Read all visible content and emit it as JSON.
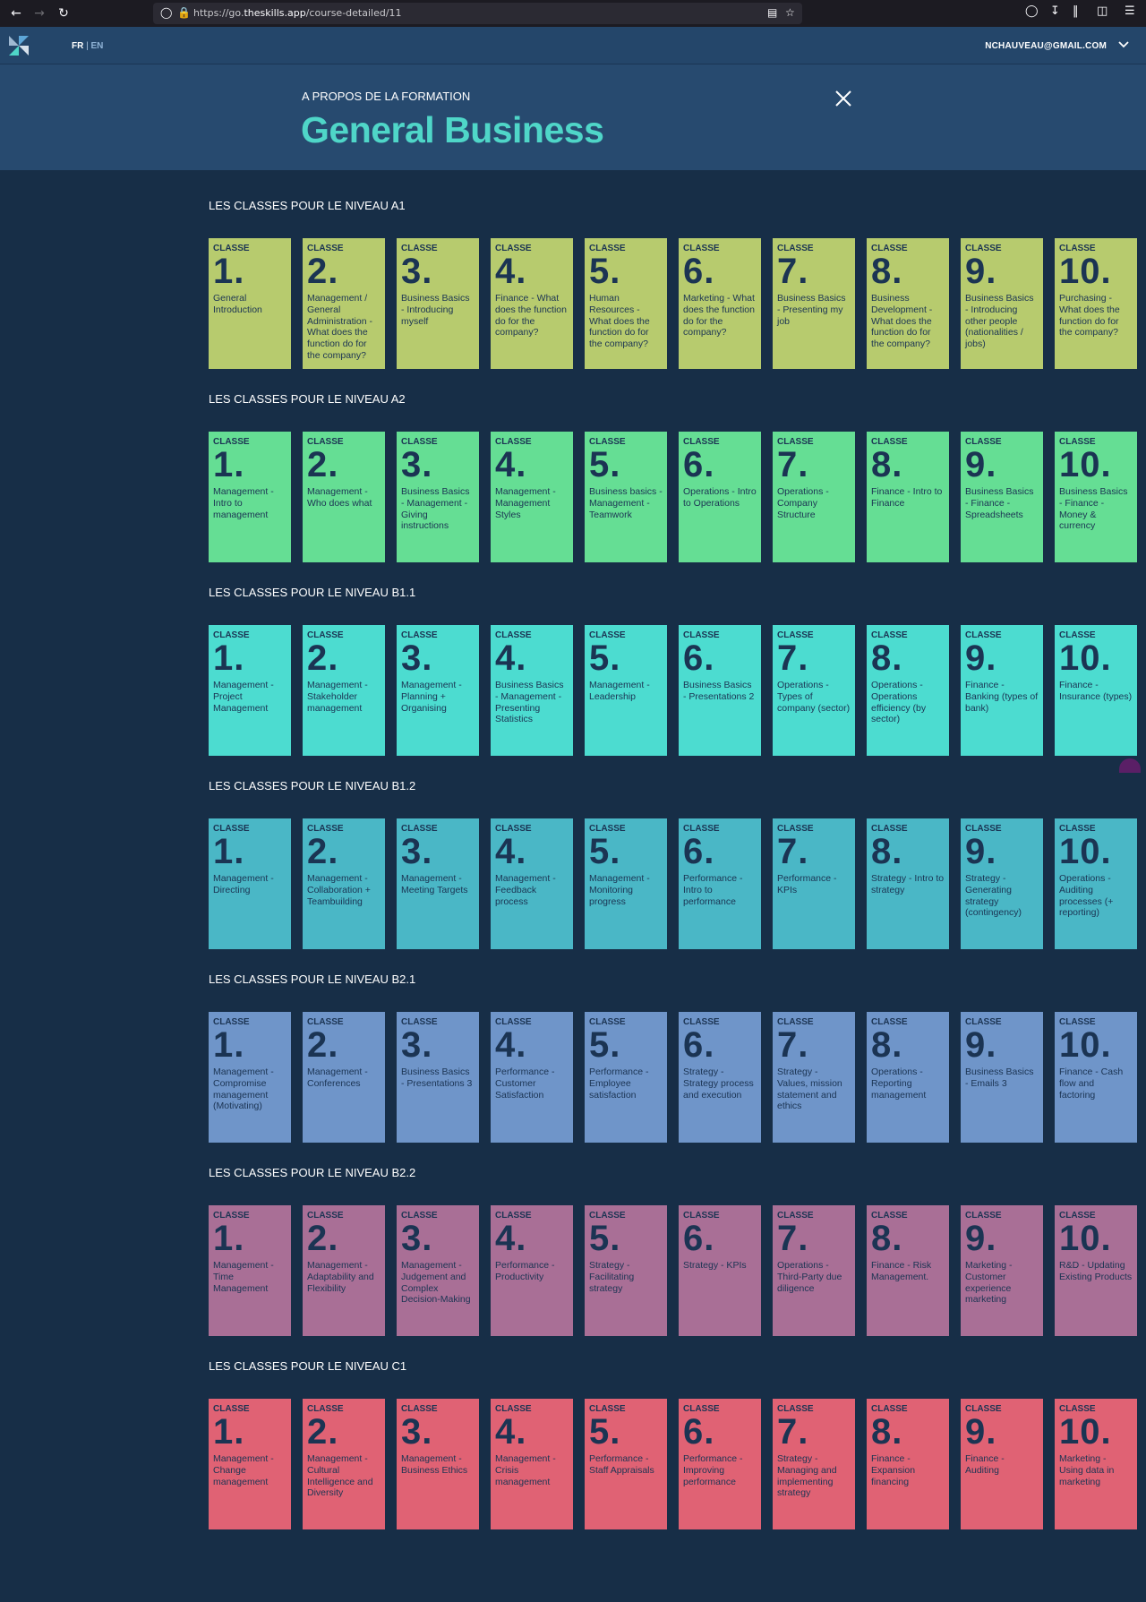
{
  "browser": {
    "url_prefix": "https://go.",
    "url_domain": "theskills.app",
    "url_path": "/course-detailed/11"
  },
  "header": {
    "lang_fr": "FR",
    "lang_sep": "|",
    "lang_en": "EN",
    "user_email": "NCHAUVEAU@GMAIL.COM"
  },
  "banner": {
    "kicker": "A PROPOS DE LA FORMATION",
    "title": "General Business"
  },
  "card_label": "CLASSE",
  "levels": [
    {
      "title": "LES CLASSES POUR LE NIVEAU A1",
      "color": "#b7cb6e",
      "classes": [
        {
          "num": "1.",
          "desc": "General Introduction"
        },
        {
          "num": "2.",
          "desc": "Management / General Administration - What does the function do for the company?"
        },
        {
          "num": "3.",
          "desc": "Business Basics - Introducing myself"
        },
        {
          "num": "4.",
          "desc": "Finance - What does the function do for the company?"
        },
        {
          "num": "5.",
          "desc": "Human Resources - What does the function do for the company?"
        },
        {
          "num": "6.",
          "desc": "Marketing - What does the function do for the company?"
        },
        {
          "num": "7.",
          "desc": "Business Basics - Presenting my job"
        },
        {
          "num": "8.",
          "desc": "Business Development - What does the function do for the company?"
        },
        {
          "num": "9.",
          "desc": "Business Basics - Introducing other people (nationalities / jobs)"
        },
        {
          "num": "10.",
          "desc": "Purchasing - What does the function do for the company?"
        }
      ]
    },
    {
      "title": "LES CLASSES POUR LE NIVEAU A2",
      "color": "#65de94",
      "classes": [
        {
          "num": "1.",
          "desc": "Management - Intro to management"
        },
        {
          "num": "2.",
          "desc": "Management - Who does what"
        },
        {
          "num": "3.",
          "desc": "Business Basics - Management - Giving instructions"
        },
        {
          "num": "4.",
          "desc": "Management - Management Styles"
        },
        {
          "num": "5.",
          "desc": "Business basics - Management - Teamwork"
        },
        {
          "num": "6.",
          "desc": "Operations - Intro to Operations"
        },
        {
          "num": "7.",
          "desc": "Operations - Company Structure"
        },
        {
          "num": "8.",
          "desc": "Finance - Intro to Finance"
        },
        {
          "num": "9.",
          "desc": "Business Basics - Finance - Spreadsheets"
        },
        {
          "num": "10.",
          "desc": "Business Basics - Finance - Money & currency"
        }
      ]
    },
    {
      "title": "LES CLASSES POUR LE NIVEAU B1.1",
      "color": "#4cdcd0",
      "classes": [
        {
          "num": "1.",
          "desc": "Management - Project Management"
        },
        {
          "num": "2.",
          "desc": "Management - Stakeholder management"
        },
        {
          "num": "3.",
          "desc": "Management - Planning + Organising"
        },
        {
          "num": "4.",
          "desc": "Business Basics - Management - Presenting Statistics"
        },
        {
          "num": "5.",
          "desc": "Management - Leadership"
        },
        {
          "num": "6.",
          "desc": "Business Basics - Presentations 2"
        },
        {
          "num": "7.",
          "desc": "Operations - Types of company (sector)"
        },
        {
          "num": "8.",
          "desc": "Operations - Operations efficiency (by sector)"
        },
        {
          "num": "9.",
          "desc": "Finance - Banking (types of bank)"
        },
        {
          "num": "10.",
          "desc": "Finance - Insurance (types)"
        }
      ]
    },
    {
      "title": "LES CLASSES POUR LE NIVEAU B1.2",
      "color": "#4ab7c6",
      "classes": [
        {
          "num": "1.",
          "desc": "Management - Directing"
        },
        {
          "num": "2.",
          "desc": "Management - Collaboration + Teambuilding"
        },
        {
          "num": "3.",
          "desc": "Management - Meeting Targets"
        },
        {
          "num": "4.",
          "desc": "Management - Feedback process"
        },
        {
          "num": "5.",
          "desc": "Management - Monitoring progress"
        },
        {
          "num": "6.",
          "desc": "Performance - Intro to performance"
        },
        {
          "num": "7.",
          "desc": "Performance - KPIs"
        },
        {
          "num": "8.",
          "desc": "Strategy - Intro to strategy"
        },
        {
          "num": "9.",
          "desc": "Strategy - Generating strategy (contingency)"
        },
        {
          "num": "10.",
          "desc": "Operations - Auditing processes (+ reporting)"
        }
      ]
    },
    {
      "title": "LES CLASSES POUR LE NIVEAU B2.1",
      "color": "#6f95c9",
      "classes": [
        {
          "num": "1.",
          "desc": "Management - Compromise management (Motivating)"
        },
        {
          "num": "2.",
          "desc": "Management - Conferences"
        },
        {
          "num": "3.",
          "desc": "Business Basics - Presentations 3"
        },
        {
          "num": "4.",
          "desc": "Performance - Customer Satisfaction"
        },
        {
          "num": "5.",
          "desc": "Performance - Employee satisfaction"
        },
        {
          "num": "6.",
          "desc": "Strategy - Strategy process and execution"
        },
        {
          "num": "7.",
          "desc": "Strategy - Values, mission statement and ethics"
        },
        {
          "num": "8.",
          "desc": "Operations - Reporting management"
        },
        {
          "num": "9.",
          "desc": "Business Basics - Emails 3"
        },
        {
          "num": "10.",
          "desc": "Finance - Cash flow and factoring"
        }
      ]
    },
    {
      "title": "LES CLASSES POUR LE NIVEAU B2.2",
      "color": "#a96f96",
      "classes": [
        {
          "num": "1.",
          "desc": "Management - Time Management"
        },
        {
          "num": "2.",
          "desc": "Management - Adaptability and Flexibility"
        },
        {
          "num": "3.",
          "desc": "Management - Judgement and Complex Decision-Making"
        },
        {
          "num": "4.",
          "desc": "Performance - Productivity"
        },
        {
          "num": "5.",
          "desc": "Strategy - Facilitating strategy"
        },
        {
          "num": "6.",
          "desc": "Strategy - KPIs"
        },
        {
          "num": "7.",
          "desc": "Operations - Third-Party due diligence"
        },
        {
          "num": "8.",
          "desc": "Finance - Risk Management."
        },
        {
          "num": "9.",
          "desc": "Marketing - Customer experience marketing"
        },
        {
          "num": "10.",
          "desc": "R&D - Updating Existing Products"
        }
      ]
    },
    {
      "title": "LES CLASSES POUR LE NIVEAU C1",
      "color": "#e06274",
      "classes": [
        {
          "num": "1.",
          "desc": "Management - Change management"
        },
        {
          "num": "2.",
          "desc": "Management - Cultural Intelligence and Diversity"
        },
        {
          "num": "3.",
          "desc": "Management - Business Ethics"
        },
        {
          "num": "4.",
          "desc": "Management - Crisis management"
        },
        {
          "num": "5.",
          "desc": "Performance - Staff Appraisals"
        },
        {
          "num": "6.",
          "desc": "Performance - Improving performance"
        },
        {
          "num": "7.",
          "desc": "Strategy - Managing and implementing strategy"
        },
        {
          "num": "8.",
          "desc": "Finance - Expansion financing"
        },
        {
          "num": "9.",
          "desc": "Finance - Auditing"
        },
        {
          "num": "10.",
          "desc": "Marketing - Using data in marketing"
        }
      ]
    }
  ]
}
